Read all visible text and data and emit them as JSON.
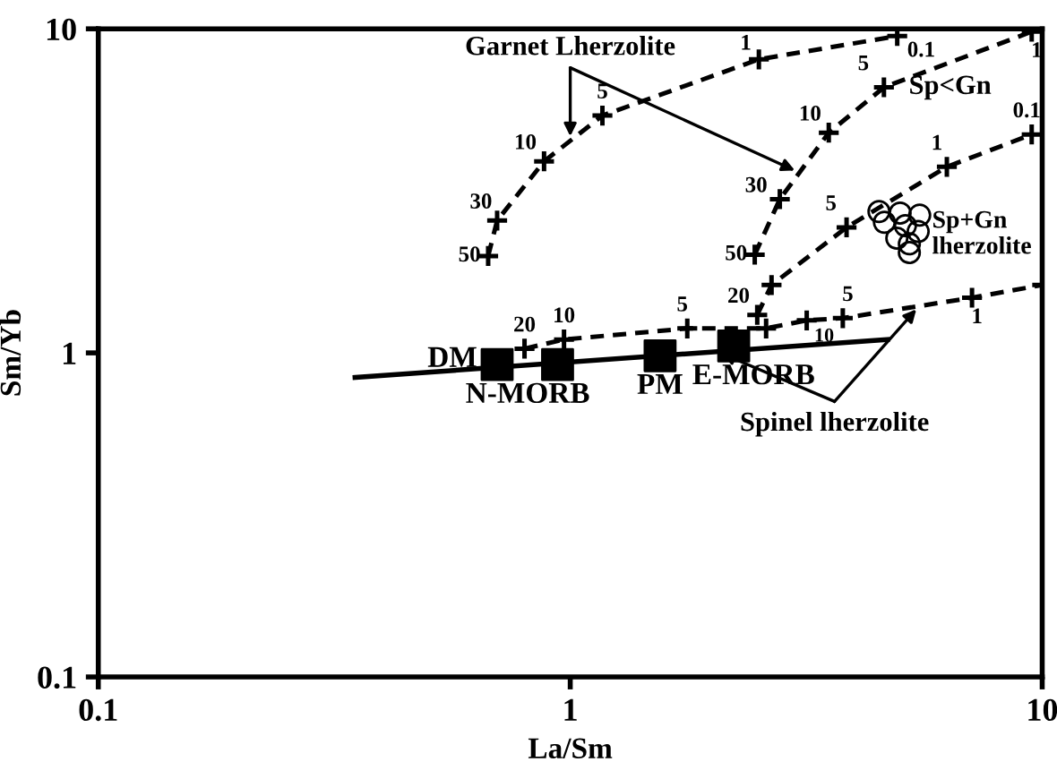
{
  "chart_data": {
    "type": "line",
    "xlabel": "La/Sm",
    "ylabel": "Sm/Yb",
    "log": "xy",
    "xlim": [
      0.1,
      10
    ],
    "ylim": [
      0.1,
      10
    ],
    "xticks": [
      0.1,
      1,
      10
    ],
    "yticks": [
      0.1,
      1,
      10
    ],
    "grid": false,
    "legend": false,
    "series": [
      {
        "color": "#000000",
        "marker": "cross",
        "line_style": "dashed",
        "x": [
          0.67,
          0.7,
          0.88,
          1.17,
          2.51,
          4.93
        ],
        "values": [
          1.99,
          2.56,
          3.9,
          5.4,
          8.05,
          9.5
        ]
      },
      {
        "color": "#000000",
        "marker": "cross",
        "line_style": "dashed",
        "x": [
          2.46,
          2.78,
          3.53,
          4.62,
          9.5
        ],
        "values": [
          2.01,
          2.98,
          4.78,
          6.6,
          9.8
        ]
      },
      {
        "color": "#000000",
        "marker": "cross",
        "line_style": "dashed",
        "x": [
          2.49,
          2.67,
          3.85,
          6.28,
          9.5
        ],
        "values": [
          1.31,
          1.62,
          2.44,
          3.75,
          4.72
        ]
      },
      {
        "color": "#000000",
        "marker": "cross",
        "line_style": "dashed",
        "x": [
          0.8,
          0.97,
          1.77,
          2.6,
          3.17,
          3.78,
          7.1,
          10
        ],
        "values": [
          1.03,
          1.1,
          1.19,
          1.19,
          1.26,
          1.28,
          1.48,
          1.62
        ]
      },
      {
        "color": "#000000",
        "marker": "none",
        "line_style": "solid",
        "x": [
          0.35,
          4.7
        ],
        "values": [
          0.84,
          1.1
        ]
      },
      {
        "type": "scatter",
        "color": "#000000",
        "marker": "square",
        "x": [
          0.7,
          0.94,
          1.55,
          2.22
        ],
        "values": [
          0.92,
          0.92,
          0.98,
          1.05
        ]
      },
      {
        "type": "scatter",
        "color": "#000000",
        "marker": "circle",
        "x": [
          4.51,
          5.0,
          5.5,
          4.63,
          5.13,
          5.46,
          4.92,
          5.23,
          5.23
        ],
        "values": [
          2.73,
          2.7,
          2.66,
          2.53,
          2.47,
          2.37,
          2.26,
          2.17,
          2.04
        ]
      }
    ],
    "annotations": [
      {
        "text": "50",
        "x": 0.67,
        "y": 1.99
      },
      {
        "text": "30",
        "x": 0.7,
        "y": 2.56
      },
      {
        "text": "10",
        "x": 0.88,
        "y": 3.9
      },
      {
        "text": "5",
        "x": 1.17,
        "y": 5.4
      },
      {
        "text": "1",
        "x": 2.51,
        "y": 8.05
      },
      {
        "text": "0.1",
        "x": 4.93,
        "y": 9.5
      },
      {
        "text": "50",
        "x": 2.46,
        "y": 2.01
      },
      {
        "text": "30",
        "x": 2.78,
        "y": 2.98
      },
      {
        "text": "10",
        "x": 3.53,
        "y": 4.78
      },
      {
        "text": "5",
        "x": 4.62,
        "y": 6.6
      },
      {
        "text": "1",
        "x": 9.5,
        "y": 9.8
      },
      {
        "text": "20",
        "x": 2.49,
        "y": 1.31
      },
      {
        "text": "5",
        "x": 3.85,
        "y": 2.44
      },
      {
        "text": "1",
        "x": 6.28,
        "y": 3.75
      },
      {
        "text": "0.1",
        "x": 9.5,
        "y": 4.72
      },
      {
        "text": "20",
        "x": 0.8,
        "y": 1.03
      },
      {
        "text": "10",
        "x": 0.97,
        "y": 1.1
      },
      {
        "text": "5",
        "x": 1.77,
        "y": 1.19
      },
      {
        "text": "10",
        "x": 3.17,
        "y": 1.26
      },
      {
        "text": "5",
        "x": 3.78,
        "y": 1.28
      },
      {
        "text": "1",
        "x": 7.1,
        "y": 1.48
      },
      {
        "text": "DM",
        "x": 0.7,
        "y": 0.92
      },
      {
        "text": "N-MORB",
        "x": 0.94,
        "y": 0.92
      },
      {
        "text": "PM",
        "x": 1.55,
        "y": 0.98
      },
      {
        "text": "E-MORB",
        "x": 2.22,
        "y": 1.05
      },
      {
        "text": "Sp<Gn",
        "x": 4.62,
        "y": 6.6
      },
      {
        "text": "Sp+Gn\nlherzolite",
        "x": 5.5,
        "y": 2.4
      },
      {
        "text": "Garnet Lherzolite",
        "x": 1.0,
        "y": 4.5
      },
      {
        "text": "Spinel lherzolite",
        "x": 5.5,
        "y": 1.4
      }
    ]
  }
}
